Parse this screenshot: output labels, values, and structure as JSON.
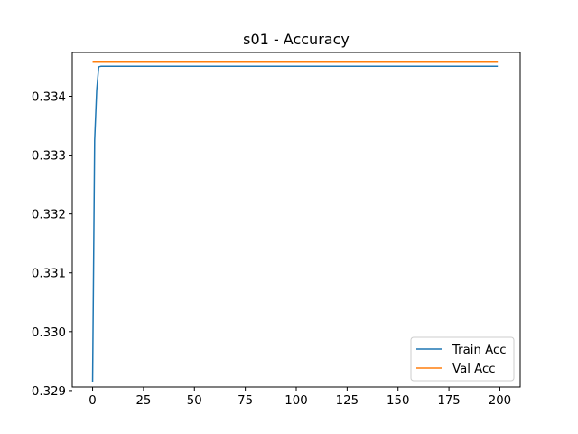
{
  "chart_data": {
    "type": "line",
    "title": "s01 - Accuracy",
    "xlabel": "",
    "ylabel": "",
    "xlim": [
      -10,
      210
    ],
    "ylim": [
      0.32906,
      0.334745
    ],
    "x_ticks": [
      0,
      25,
      50,
      75,
      100,
      125,
      150,
      175,
      200
    ],
    "y_ticks": [
      0.329,
      0.33,
      0.331,
      0.332,
      0.333,
      0.334
    ],
    "y_tick_labels": [
      "0.329",
      "0.330",
      "0.331",
      "0.332",
      "0.333",
      "0.334"
    ],
    "grid": false,
    "legend": {
      "placement": "lower-right",
      "entries": [
        "Train Acc",
        "Val Acc"
      ]
    },
    "series": [
      {
        "name": "Train Acc",
        "color": "#1f77b4",
        "x": [
          0,
          1,
          2,
          3,
          4,
          199
        ],
        "y": [
          0.32915,
          0.33325,
          0.3341,
          0.3345,
          0.33451,
          0.33451
        ]
      },
      {
        "name": "Val Acc",
        "color": "#ff7f0e",
        "x": [
          0,
          199
        ],
        "y": [
          0.33458,
          0.33458
        ]
      }
    ]
  }
}
